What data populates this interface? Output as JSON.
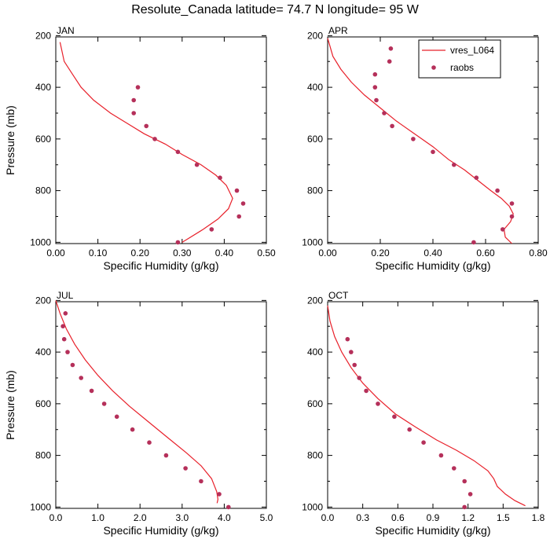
{
  "title": "Resolute_Canada  latitude= 74.7 N longitude= 95 W",
  "legend": {
    "model_label": "vres_L064",
    "obs_label": "raobs"
  },
  "colors": {
    "model_line": "#e8202a",
    "obs_marker": "#b5305a"
  },
  "chart_data": [
    {
      "type": "line",
      "panel": "JAN",
      "xlabel": "Specific Humidity (g/kg)",
      "ylabel": "Pressure (mb)",
      "xlim": [
        0,
        0.5
      ],
      "ylim": [
        1000,
        200
      ],
      "y_reversed": true,
      "xticks": [
        "0.00",
        "0.10",
        "0.20",
        "0.30",
        "0.40",
        "0.50"
      ],
      "xtick_values": [
        0,
        0.1,
        0.2,
        0.3,
        0.4,
        0.5
      ],
      "yticks": [
        200,
        400,
        600,
        800,
        1000
      ],
      "series": [
        {
          "name": "vres_L064",
          "style": "line",
          "x": [
            0.01,
            0.02,
            0.04,
            0.06,
            0.09,
            0.13,
            0.17,
            0.21,
            0.26,
            0.3,
            0.345,
            0.38,
            0.405,
            0.42,
            0.41,
            0.385,
            0.35,
            0.31,
            0.3
          ],
          "y": [
            225,
            300,
            350,
            400,
            450,
            500,
            540,
            580,
            620,
            660,
            700,
            740,
            780,
            830,
            870,
            910,
            950,
            990,
            1000
          ]
        },
        {
          "name": "raobs",
          "style": "scatter",
          "x": [
            0.195,
            0.185,
            0.185,
            0.215,
            0.235,
            0.29,
            0.335,
            0.39,
            0.43,
            0.445,
            0.435,
            0.37,
            0.29
          ],
          "y": [
            400,
            450,
            500,
            550,
            600,
            650,
            700,
            750,
            800,
            850,
            900,
            950,
            1000
          ]
        }
      ]
    },
    {
      "type": "line",
      "panel": "APR",
      "xlabel": "Specific Humidity (g/kg)",
      "ylabel": "",
      "xlim": [
        0,
        0.8
      ],
      "ylim": [
        1000,
        200
      ],
      "y_reversed": true,
      "xticks": [
        "0.00",
        "0.20",
        "0.40",
        "0.60",
        "0.80"
      ],
      "xtick_values": [
        0,
        0.2,
        0.4,
        0.6,
        0.8
      ],
      "yticks": [
        200,
        400,
        600,
        800,
        1000
      ],
      "series": [
        {
          "name": "vres_L064",
          "style": "line",
          "x": [
            0.0,
            0.02,
            0.05,
            0.09,
            0.14,
            0.2,
            0.26,
            0.33,
            0.4,
            0.46,
            0.52,
            0.57,
            0.62,
            0.66,
            0.69,
            0.705,
            0.695,
            0.67,
            0.675,
            0.7
          ],
          "y": [
            210,
            280,
            330,
            380,
            430,
            480,
            530,
            580,
            630,
            680,
            720,
            760,
            800,
            830,
            860,
            890,
            920,
            950,
            980,
            1005
          ]
        },
        {
          "name": "raobs",
          "style": "scatter",
          "x": [
            0.24,
            0.235,
            0.18,
            0.18,
            0.185,
            0.215,
            0.245,
            0.325,
            0.4,
            0.48,
            0.565,
            0.645,
            0.7,
            0.7,
            0.665,
            0.555
          ],
          "y": [
            250,
            300,
            350,
            400,
            450,
            500,
            550,
            600,
            650,
            700,
            750,
            800,
            850,
            900,
            950,
            1000
          ]
        }
      ]
    },
    {
      "type": "line",
      "panel": "JUL",
      "xlabel": "Specific Humidity (g/kg)",
      "ylabel": "Pressure (mb)",
      "xlim": [
        0,
        5
      ],
      "ylim": [
        1000,
        200
      ],
      "y_reversed": true,
      "xticks": [
        "0.0",
        "1.0",
        "2.0",
        "3.0",
        "4.0",
        "5.0"
      ],
      "xtick_values": [
        0,
        1,
        2,
        3,
        4,
        5
      ],
      "yticks": [
        200,
        400,
        600,
        800,
        1000
      ],
      "series": [
        {
          "name": "vres_L064",
          "style": "line",
          "x": [
            0.0,
            0.1,
            0.25,
            0.45,
            0.7,
            1.0,
            1.35,
            1.75,
            2.2,
            2.65,
            3.1,
            3.45,
            3.7,
            3.82,
            3.85,
            3.83
          ],
          "y": [
            200,
            250,
            310,
            370,
            430,
            490,
            550,
            610,
            670,
            730,
            790,
            840,
            890,
            940,
            970,
            985
          ]
        },
        {
          "name": "raobs",
          "style": "scatter",
          "x": [
            0.23,
            0.17,
            0.2,
            0.28,
            0.4,
            0.6,
            0.85,
            1.15,
            1.45,
            1.82,
            2.22,
            2.62,
            3.08,
            3.45,
            3.88,
            4.1
          ],
          "y": [
            250,
            300,
            350,
            400,
            450,
            500,
            550,
            600,
            650,
            700,
            750,
            800,
            850,
            900,
            950,
            1000
          ]
        }
      ]
    },
    {
      "type": "line",
      "panel": "OCT",
      "xlabel": "Specific Humidity (g/kg)",
      "ylabel": "",
      "xlim": [
        0,
        1.8
      ],
      "ylim": [
        1000,
        200
      ],
      "y_reversed": true,
      "xticks": [
        "0.0",
        "0.3",
        "0.6",
        "0.9",
        "1.2",
        "1.5",
        "1.8"
      ],
      "xtick_values": [
        0,
        0.3,
        0.6,
        0.9,
        1.2,
        1.5,
        1.8
      ],
      "yticks": [
        200,
        400,
        600,
        800,
        1000
      ],
      "series": [
        {
          "name": "vres_L064",
          "style": "line",
          "x": [
            0.0,
            0.02,
            0.06,
            0.12,
            0.2,
            0.3,
            0.43,
            0.58,
            0.75,
            0.93,
            1.1,
            1.25,
            1.37,
            1.42,
            1.45,
            1.52,
            1.6,
            1.69
          ],
          "y": [
            220,
            280,
            340,
            400,
            460,
            520,
            580,
            640,
            690,
            740,
            780,
            820,
            860,
            890,
            920,
            950,
            975,
            995
          ]
        },
        {
          "name": "raobs",
          "style": "scatter",
          "x": [
            0.17,
            0.2,
            0.23,
            0.27,
            0.33,
            0.43,
            0.57,
            0.7,
            0.82,
            0.97,
            1.08,
            1.17,
            1.22,
            1.17
          ],
          "y": [
            350,
            400,
            450,
            500,
            550,
            600,
            650,
            700,
            750,
            800,
            850,
            900,
            950,
            1000
          ]
        }
      ]
    }
  ]
}
